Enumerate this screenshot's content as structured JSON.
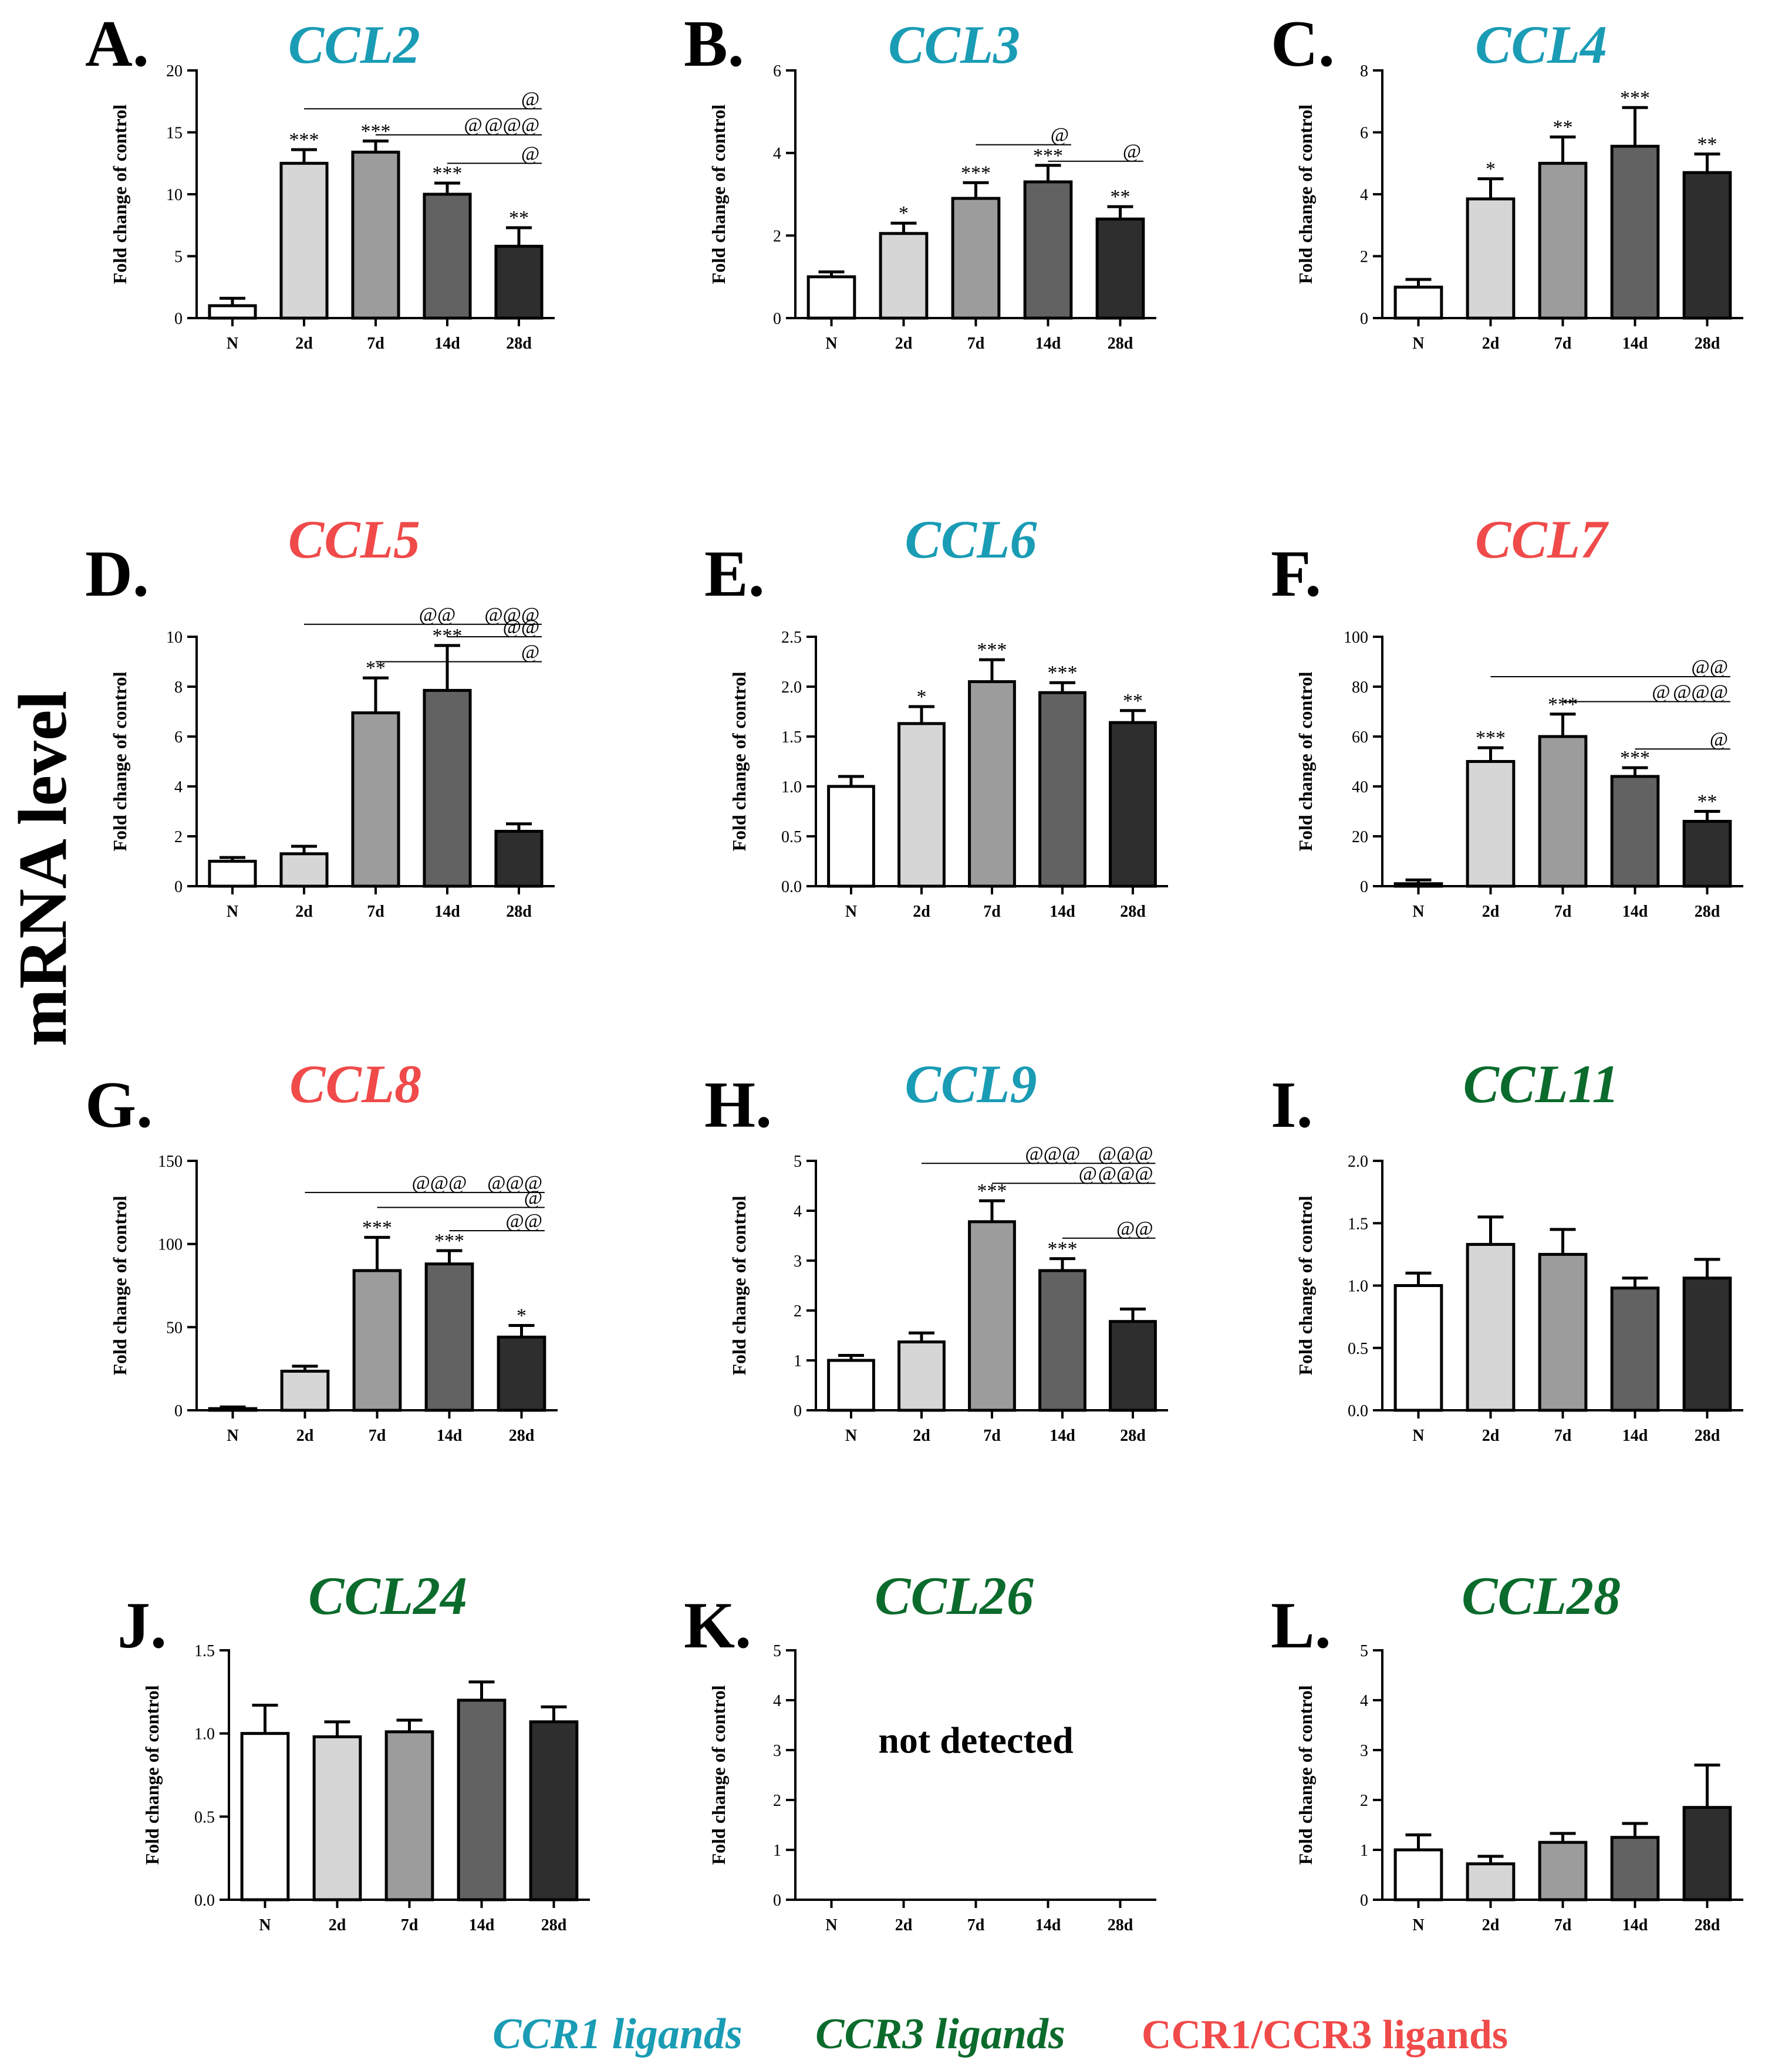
{
  "figure": {
    "y_side_label": "mRNA level",
    "legend": [
      {
        "label": "CCR1 ligands",
        "color": "#1a9cb5",
        "italic": true
      },
      {
        "label": "CCR3 ligands",
        "color": "#0b6b2c",
        "italic": true
      },
      {
        "label": "CCR1/CCR3 ligands",
        "color": "#f04a4a",
        "italic": false
      }
    ]
  },
  "colors": {
    "ccr1": "#1a9cb5",
    "ccr3": "#0b6b2c",
    "both": "#f04a4a",
    "bars": [
      "#ffffff",
      "#d6d6d6",
      "#9c9c9c",
      "#626262",
      "#2e2e2e"
    ],
    "ink": "#000000"
  },
  "chart_data": [
    {
      "panel_label": "A.",
      "title": "CCL2",
      "title_group": "ccr1",
      "type": "bar",
      "categories": [
        "N",
        "2d",
        "7d",
        "14d",
        "28d"
      ],
      "values": [
        1.0,
        12.5,
        13.4,
        10.0,
        5.8
      ],
      "errors": [
        0.6,
        1.1,
        0.9,
        0.9,
        1.5
      ],
      "stars": [
        "",
        "***",
        "***",
        "***",
        "**"
      ],
      "ylabel": "Fold change of control",
      "ylim": [
        0,
        20
      ],
      "yticks": [
        0,
        5,
        10,
        15,
        20
      ],
      "tick_labels": [
        "0",
        "5",
        "10",
        "15",
        "20"
      ],
      "brackets": [
        {
          "from": 1,
          "to": 4,
          "level": 16.9,
          "label": "@"
        },
        {
          "from": 2,
          "to": 4,
          "level": 14.8,
          "label_a": "@",
          "label_b": "@@@"
        },
        {
          "from": 3,
          "to": 4,
          "level": 12.5,
          "label": "@"
        }
      ]
    },
    {
      "panel_label": "B.",
      "title": "CCL3",
      "title_group": "ccr1",
      "type": "bar",
      "categories": [
        "N",
        "2d",
        "7d",
        "14d",
        "28d"
      ],
      "values": [
        1.0,
        2.05,
        2.9,
        3.3,
        2.4
      ],
      "errors": [
        0.12,
        0.25,
        0.38,
        0.4,
        0.3
      ],
      "stars": [
        "",
        "*",
        "***",
        "***",
        "**"
      ],
      "ylabel": "Fold change of control",
      "ylim": [
        0,
        6
      ],
      "yticks": [
        0,
        2,
        4,
        6
      ],
      "tick_labels": [
        "0",
        "2",
        "4",
        "6"
      ],
      "brackets": [
        {
          "from": 2,
          "to": 3,
          "level": 4.2,
          "label": "@"
        },
        {
          "from": 3,
          "to": 4,
          "level": 3.8,
          "label": "@"
        }
      ]
    },
    {
      "panel_label": "C.",
      "title": "CCL4",
      "title_group": "ccr1",
      "type": "bar",
      "categories": [
        "N",
        "2d",
        "7d",
        "14d",
        "28d"
      ],
      "values": [
        1.0,
        3.85,
        5.0,
        5.55,
        4.7
      ],
      "errors": [
        0.25,
        0.65,
        0.85,
        1.25,
        0.6
      ],
      "stars": [
        "",
        "*",
        "**",
        "***",
        "**"
      ],
      "ylabel": "Fold change of control",
      "ylim": [
        0,
        8
      ],
      "yticks": [
        0,
        2,
        4,
        6,
        8
      ],
      "tick_labels": [
        "0",
        "2",
        "4",
        "6",
        "8"
      ],
      "brackets": []
    },
    {
      "panel_label": "D.",
      "title": "CCL5",
      "title_group": "both",
      "type": "bar",
      "categories": [
        "N",
        "2d",
        "7d",
        "14d",
        "28d"
      ],
      "values": [
        1.0,
        1.3,
        6.95,
        7.85,
        2.2
      ],
      "errors": [
        0.15,
        0.3,
        1.4,
        1.8,
        0.3
      ],
      "stars": [
        "",
        "",
        "**",
        "***",
        ""
      ],
      "ylabel": "Fold change of control",
      "ylim": [
        0,
        10
      ],
      "yticks": [
        0,
        2,
        4,
        6,
        8,
        10
      ],
      "tick_labels": [
        "0",
        "2",
        "4",
        "6",
        "8",
        "10"
      ],
      "brackets": [
        {
          "from": 1,
          "to": 4,
          "level": 10.5,
          "label_a": "@@",
          "label_b": "@@@"
        },
        {
          "from": 3,
          "to": 4,
          "level": 10.0,
          "label": "@@"
        },
        {
          "from": 2,
          "to": 4,
          "level": 9.0,
          "label": "@"
        }
      ]
    },
    {
      "panel_label": "E.",
      "title": "CCL6",
      "title_group": "ccr1",
      "type": "bar",
      "categories": [
        "N",
        "2d",
        "7d",
        "14d",
        "28d"
      ],
      "values": [
        1.0,
        1.63,
        2.05,
        1.94,
        1.64
      ],
      "errors": [
        0.1,
        0.17,
        0.22,
        0.1,
        0.12
      ],
      "stars": [
        "",
        "*",
        "***",
        "***",
        "**"
      ],
      "ylabel": "Fold change of control",
      "ylim": [
        0,
        2.5
      ],
      "yticks": [
        0,
        0.5,
        1.0,
        1.5,
        2.0,
        2.5
      ],
      "tick_labels": [
        "0.0",
        "0.5",
        "1.0",
        "1.5",
        "2.0",
        "2.5"
      ],
      "brackets": []
    },
    {
      "panel_label": "F.",
      "title": "CCL7",
      "title_group": "both",
      "type": "bar",
      "categories": [
        "N",
        "2d",
        "7d",
        "14d",
        "28d"
      ],
      "values": [
        1.0,
        50.0,
        60.0,
        44.0,
        26.0
      ],
      "errors": [
        1.5,
        5.5,
        9.0,
        3.5,
        4.0
      ],
      "stars": [
        "",
        "***",
        "***",
        "***",
        "**"
      ],
      "ylabel": "Fold change of control",
      "ylim": [
        0,
        100
      ],
      "yticks": [
        0,
        20,
        40,
        60,
        80,
        100
      ],
      "tick_labels": [
        "0",
        "20",
        "40",
        "60",
        "80",
        "100"
      ],
      "brackets": [
        {
          "from": 1,
          "to": 4,
          "level": 84,
          "label": "@@"
        },
        {
          "from": 2,
          "to": 4,
          "level": 74,
          "label_a": "@",
          "label_b": "@@@"
        },
        {
          "from": 3,
          "to": 4,
          "level": 55,
          "label": "@"
        }
      ]
    },
    {
      "panel_label": "G.",
      "title": "CCL8",
      "title_group": "both",
      "type": "bar",
      "categories": [
        "N",
        "2d",
        "7d",
        "14d",
        "28d"
      ],
      "values": [
        1.0,
        23.5,
        84.0,
        88.0,
        44.0
      ],
      "errors": [
        1.0,
        3.0,
        20.0,
        8.0,
        7.0
      ],
      "stars": [
        "",
        "",
        "***",
        "***",
        "*"
      ],
      "ylabel": "Fold change of control",
      "ylim": [
        0,
        150
      ],
      "yticks": [
        0,
        50,
        100,
        150
      ],
      "tick_labels": [
        "0",
        "50",
        "100",
        "150"
      ],
      "brackets": [
        {
          "from": 1,
          "to": 4,
          "level": 131,
          "label_a": "@@@",
          "label_b": "@@@"
        },
        {
          "from": 2,
          "to": 4,
          "level": 122,
          "label": "@"
        },
        {
          "from": 3,
          "to": 4,
          "level": 108,
          "label": "@@"
        }
      ]
    },
    {
      "panel_label": "H.",
      "title": "CCL9",
      "title_group": "ccr1",
      "type": "bar",
      "categories": [
        "N",
        "2d",
        "7d",
        "14d",
        "28d"
      ],
      "values": [
        1.0,
        1.37,
        3.78,
        2.8,
        1.78
      ],
      "errors": [
        0.1,
        0.18,
        0.42,
        0.24,
        0.25
      ],
      "stars": [
        "",
        "",
        "***",
        "***",
        ""
      ],
      "ylabel": "Fold change of control",
      "ylim": [
        0,
        5
      ],
      "yticks": [
        0,
        1,
        2,
        3,
        4,
        5
      ],
      "tick_labels": [
        "0",
        "1",
        "2",
        "3",
        "4",
        "5"
      ],
      "brackets": [
        {
          "from": 1,
          "to": 4,
          "level": 4.95,
          "label_a": "@@@",
          "label_b": "@@@"
        },
        {
          "from": 2,
          "to": 4,
          "level": 4.55,
          "label_a": "@",
          "label_b": "@@@"
        },
        {
          "from": 3,
          "to": 4,
          "level": 3.45,
          "label": "@@"
        }
      ]
    },
    {
      "panel_label": "I.",
      "title": "CCL11",
      "title_group": "ccr3",
      "type": "bar",
      "categories": [
        "N",
        "2d",
        "7d",
        "14d",
        "28d"
      ],
      "values": [
        1.0,
        1.33,
        1.25,
        0.98,
        1.06
      ],
      "errors": [
        0.1,
        0.22,
        0.2,
        0.08,
        0.15
      ],
      "stars": [
        "",
        "",
        "",
        "",
        ""
      ],
      "ylabel": "Fold change of control",
      "ylim": [
        0,
        2
      ],
      "yticks": [
        0,
        0.5,
        1.0,
        1.5,
        2.0
      ],
      "tick_labels": [
        "0.0",
        "0.5",
        "1.0",
        "1.5",
        "2.0"
      ],
      "brackets": []
    },
    {
      "panel_label": "J.",
      "title": "CCL24",
      "title_group": "ccr3",
      "type": "bar",
      "categories": [
        "N",
        "2d",
        "7d",
        "14d",
        "28d"
      ],
      "values": [
        1.0,
        0.98,
        1.01,
        1.2,
        1.07
      ],
      "errors": [
        0.17,
        0.09,
        0.07,
        0.11,
        0.09
      ],
      "stars": [
        "",
        "",
        "",
        "",
        ""
      ],
      "ylabel": "Fold change of control",
      "ylim": [
        0,
        1.5
      ],
      "yticks": [
        0,
        0.5,
        1.0,
        1.5
      ],
      "tick_labels": [
        "0.0",
        "0.5",
        "1.0",
        "1.5"
      ],
      "brackets": []
    },
    {
      "panel_label": "K.",
      "title": "CCL26",
      "title_group": "ccr3",
      "type": "bar",
      "categories": [
        "N",
        "2d",
        "7d",
        "14d",
        "28d"
      ],
      "values": [
        null,
        null,
        null,
        null,
        null
      ],
      "errors": [
        null,
        null,
        null,
        null,
        null
      ],
      "stars": [
        "",
        "",
        "",
        "",
        ""
      ],
      "annotation": "not detected",
      "ylabel": "Fold change of control",
      "ylim": [
        0,
        5
      ],
      "yticks": [
        0,
        1,
        2,
        3,
        4,
        5
      ],
      "tick_labels": [
        "0",
        "1",
        "2",
        "3",
        "4",
        "5"
      ],
      "brackets": []
    },
    {
      "panel_label": "L.",
      "title": "CCL28",
      "title_group": "ccr3",
      "type": "bar",
      "categories": [
        "N",
        "2d",
        "7d",
        "14d",
        "28d"
      ],
      "values": [
        1.0,
        0.72,
        1.15,
        1.25,
        1.85
      ],
      "errors": [
        0.3,
        0.15,
        0.18,
        0.28,
        0.85
      ],
      "stars": [
        "",
        "",
        "",
        "",
        ""
      ],
      "ylabel": "Fold change of control",
      "ylim": [
        0,
        5
      ],
      "yticks": [
        0,
        1,
        2,
        3,
        4,
        5
      ],
      "tick_labels": [
        "0",
        "1",
        "2",
        "3",
        "4",
        "5"
      ],
      "brackets": []
    }
  ]
}
